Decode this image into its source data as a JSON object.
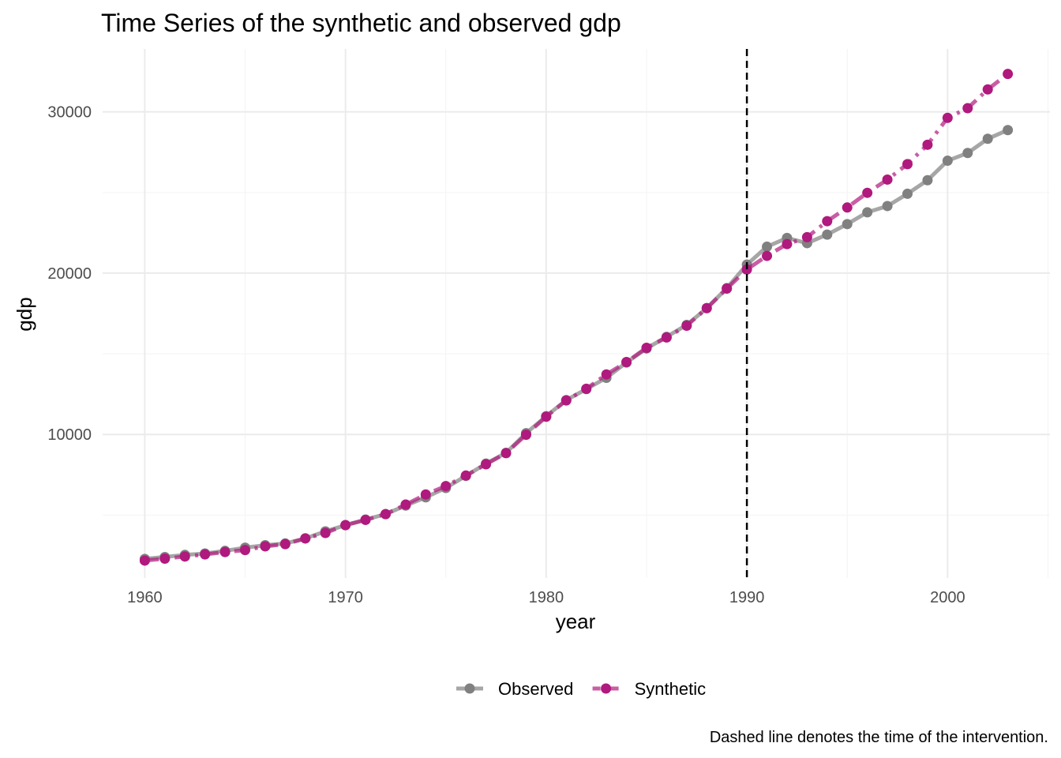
{
  "chart_data": {
    "type": "line",
    "title": "Time Series of the synthetic and observed gdp",
    "xlabel": "year",
    "ylabel": "gdp",
    "caption": "Dashed line denotes the time of the intervention.",
    "x_ticks": [
      1960,
      1970,
      1980,
      1990,
      2000
    ],
    "y_ticks": [
      10000,
      20000,
      30000
    ],
    "xlim": [
      1957.9,
      2005.1
    ],
    "ylim": [
      1100,
      33900
    ],
    "intervention_year": 1990,
    "legend_position": "bottom",
    "grid": true,
    "x": [
      1960,
      1961,
      1962,
      1963,
      1964,
      1965,
      1966,
      1967,
      1968,
      1969,
      1970,
      1971,
      1972,
      1973,
      1974,
      1975,
      1976,
      1977,
      1978,
      1979,
      1980,
      1981,
      1982,
      1983,
      1984,
      1985,
      1986,
      1987,
      1988,
      1989,
      1990,
      1991,
      1992,
      1993,
      1994,
      1995,
      1996,
      1997,
      1998,
      1999,
      2000,
      2001,
      2002,
      2003
    ],
    "series": [
      {
        "name": "Observed",
        "color": "#808080",
        "line_style": "solid",
        "values": [
          2280,
          2400,
          2530,
          2620,
          2780,
          2980,
          3130,
          3240,
          3560,
          3990,
          4370,
          4720,
          5060,
          5590,
          6100,
          6680,
          7430,
          8190,
          8860,
          10080,
          11130,
          12130,
          12810,
          13510,
          14460,
          15330,
          16050,
          16790,
          17830,
          19070,
          20530,
          21640,
          22180,
          21860,
          22390,
          23040,
          23770,
          24160,
          24920,
          25760,
          26970,
          27450,
          28330,
          28870
        ]
      },
      {
        "name": "Synthetic",
        "color": "#b0197d",
        "line_style": "dashed",
        "values": [
          2180,
          2300,
          2430,
          2560,
          2710,
          2830,
          3060,
          3200,
          3550,
          3890,
          4380,
          4700,
          5060,
          5650,
          6280,
          6800,
          7450,
          8150,
          8840,
          9980,
          11100,
          12110,
          12830,
          13720,
          14490,
          15370,
          16010,
          16740,
          17830,
          19040,
          20230,
          21070,
          21800,
          22230,
          23220,
          24070,
          24980,
          25800,
          26760,
          27960,
          29630,
          30230,
          31390,
          32350
        ]
      }
    ]
  }
}
